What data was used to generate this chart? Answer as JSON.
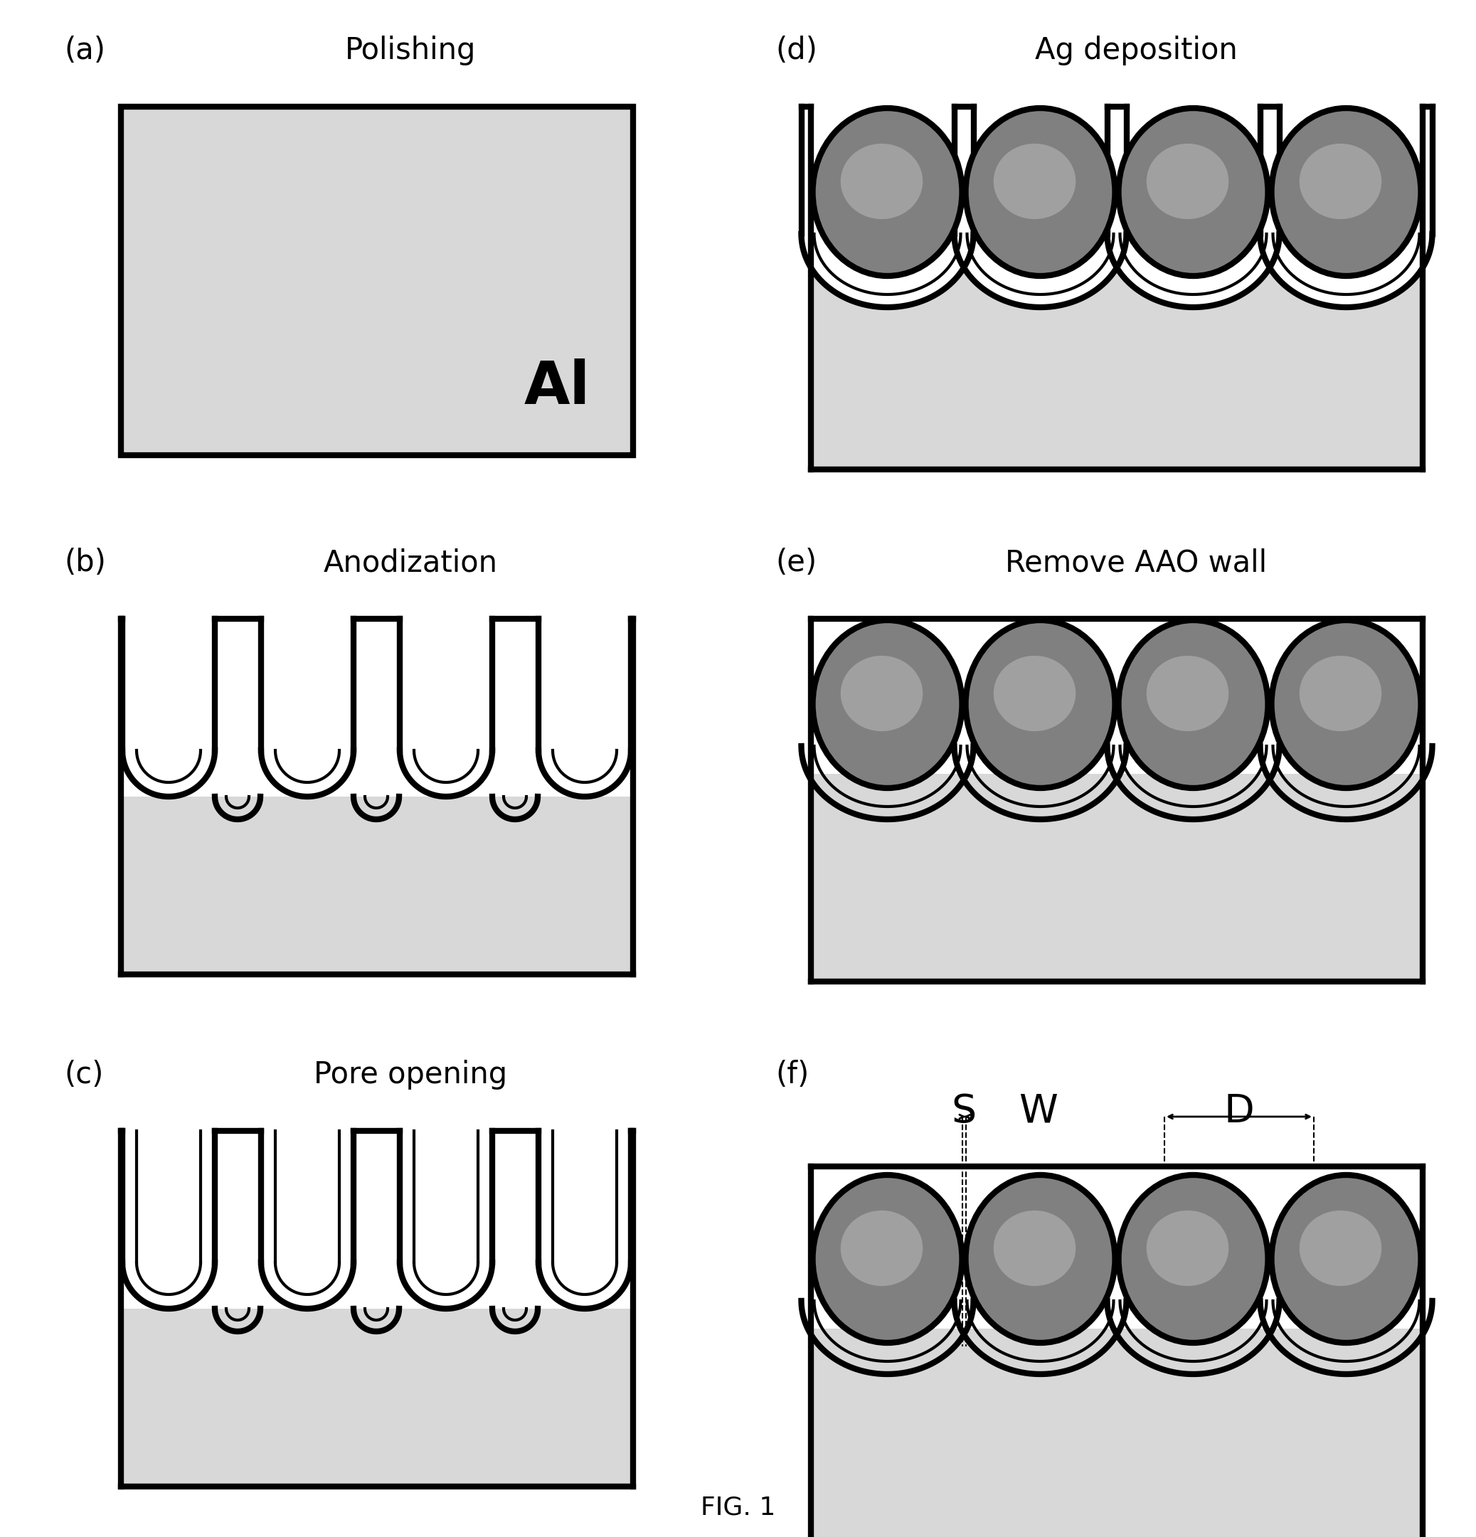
{
  "bg_color": "#ffffff",
  "al_fill": "#d8d8d8",
  "ag_fill_dark": "#808080",
  "ag_fill_mid": "#a0a0a0",
  "white": "#ffffff",
  "black": "#000000",
  "panel_labels": [
    "(a)",
    "(b)",
    "(c)",
    "(d)",
    "(e)",
    "(f)"
  ],
  "panel_titles": [
    "Polishing",
    "Anodization",
    "Pore opening",
    "Ag deposition",
    "Remove AAO wall",
    ""
  ],
  "fig_title": "FIG. 1",
  "label_fontsize": 30,
  "title_fontsize": 30,
  "al_text_fontsize": 60,
  "swd_fontsize": 40,
  "fig_title_fontsize": 26,
  "lw_thick": 6,
  "lw_thin": 3
}
